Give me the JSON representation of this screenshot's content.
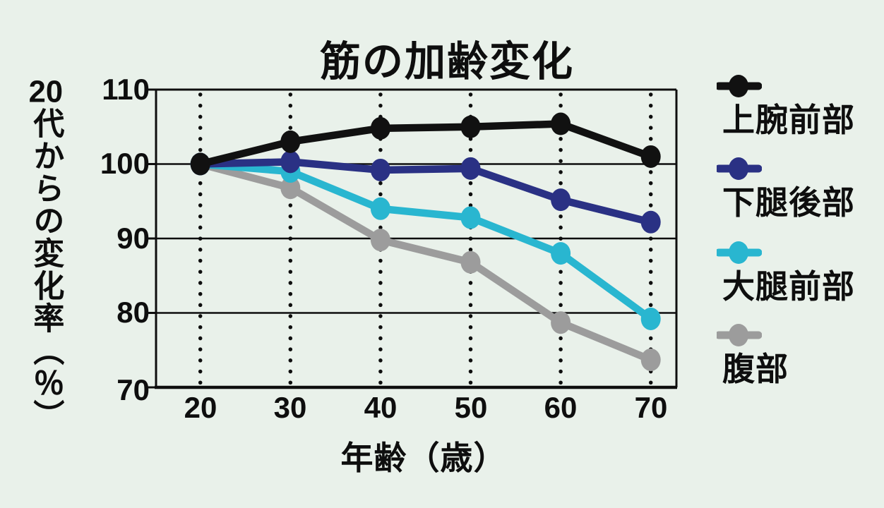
{
  "title": "筋の加齢変化",
  "colors": {
    "background": "#e9f1ea",
    "axis": "#0e0e0e",
    "series_black": "#111111",
    "series_navy": "#2a3184",
    "series_cyan": "#29b6d0",
    "series_gray": "#9c9c9c"
  },
  "chart_data": {
    "type": "line",
    "title": "筋の加齢変化",
    "xlabel": "年齢（歳）",
    "ylabel": "20代からの変化率（％）",
    "ylabel_head": "20",
    "ylabel_tail": "代からの変化率（％）",
    "x": [
      20,
      30,
      40,
      50,
      60,
      70
    ],
    "x_tick_labels": [
      "20",
      "30",
      "40",
      "50",
      "60",
      "70"
    ],
    "y_tick_labels": [
      "110",
      "100",
      "90",
      "80",
      "70"
    ],
    "y_ticks": [
      110,
      100,
      90,
      80,
      70
    ],
    "xlim": [
      20,
      70
    ],
    "ylim": [
      70,
      110
    ],
    "grid": {
      "horizontal": "solid",
      "vertical": "dotted"
    },
    "legend_position": "right",
    "series": [
      {
        "name": "上腕前部",
        "color": "#111111",
        "values": [
          100,
          103,
          104.8,
          105,
          105.4,
          101
        ]
      },
      {
        "name": "下腿後部",
        "color": "#2a3184",
        "values": [
          100,
          100.3,
          99.2,
          99.4,
          95.2,
          92.2
        ]
      },
      {
        "name": "大腿前部",
        "color": "#29b6d0",
        "values": [
          100,
          99,
          94,
          92.8,
          88,
          79.2
        ]
      },
      {
        "name": "腹部",
        "color": "#9c9c9c",
        "values": [
          100,
          96.8,
          89.8,
          86.8,
          78.7,
          73.7
        ]
      }
    ]
  }
}
